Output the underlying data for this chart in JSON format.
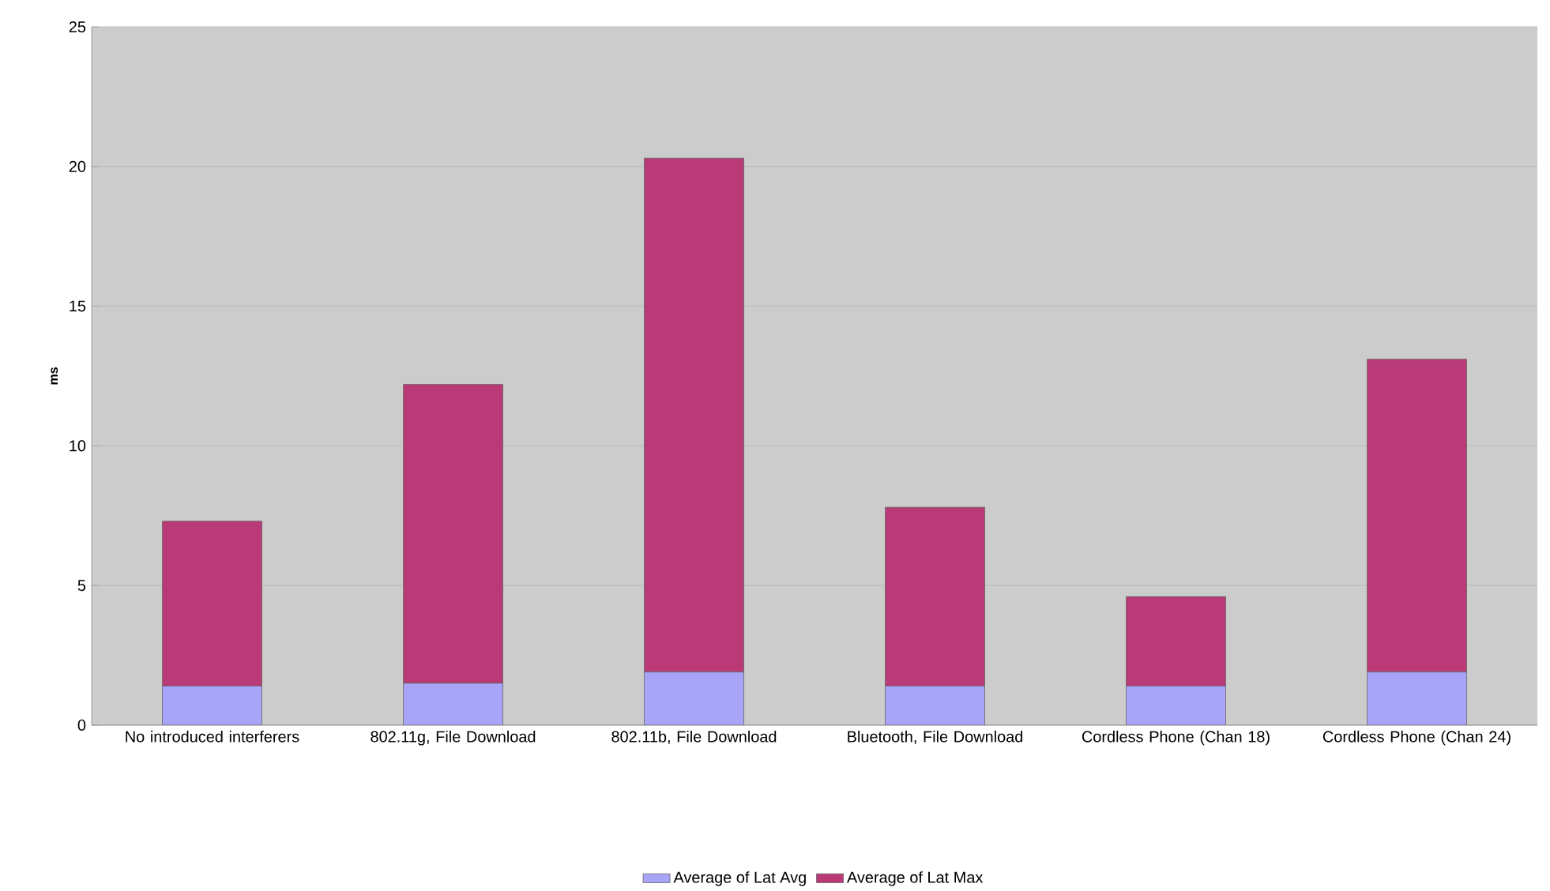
{
  "chart_data": {
    "type": "bar",
    "stacked": true,
    "ylabel": "ms",
    "categories": [
      "No introduced interferers",
      "802.11g, File Download",
      "802.11b, File Download",
      "Bluetooth, File Download",
      "Cordless Phone (Chan 18)",
      "Cordless Phone (Chan 24)"
    ],
    "series": [
      {
        "name": "Average of Lat Avg",
        "color": "#a8a4f8",
        "values": [
          1.4,
          1.5,
          1.9,
          1.4,
          1.4,
          1.9
        ]
      },
      {
        "name": "Average of Lat Max",
        "color": "#b93a76",
        "values": [
          5.9,
          10.7,
          18.4,
          6.4,
          3.2,
          11.2
        ]
      }
    ],
    "ylim": [
      0,
      25
    ],
    "yticks": [
      0,
      5,
      10,
      15,
      20,
      25
    ],
    "grid": "y",
    "legend": "bottom"
  }
}
